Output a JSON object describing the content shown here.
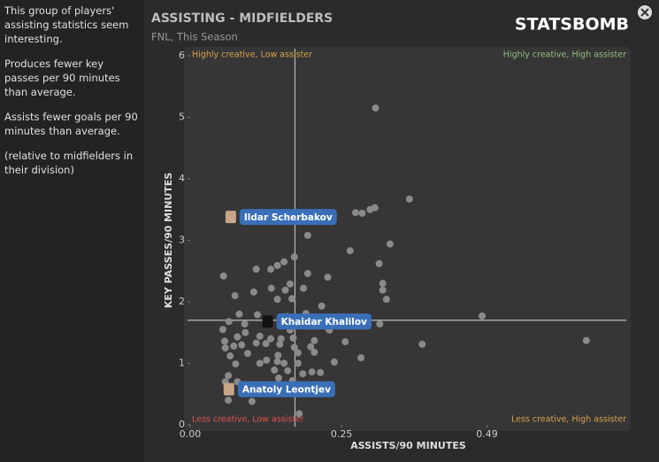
{
  "sidebar": {
    "paragraphs": [
      "This group of players' assisting statistics seem interesting.",
      "Produces fewer key passes per 90 minutes than average.",
      "Assists fewer goals per 90 minutes than average.",
      "(relative to midfielders in their division)"
    ]
  },
  "header": {
    "title": "ASSISTING - MIDFIELDERS",
    "subtitle": "FNL, This Season",
    "logo": "STATSBOMB"
  },
  "chart_data": {
    "type": "scatter",
    "x_label": "ASSISTS/90 MINUTES",
    "y_label": "KEY PASSES/90 MINUTES",
    "xlim": [
      0,
      0.72
    ],
    "ylim": [
      0,
      6
    ],
    "xticks": [
      {
        "value": 0,
        "label": "0.00"
      },
      0.25,
      0.49
    ],
    "yticks": [
      0,
      1,
      2,
      3,
      4,
      5,
      6
    ],
    "reference_lines": {
      "x": 0.173,
      "y": 1.7
    },
    "quadrant_labels": {
      "top_left": "Highly creative, Low assister",
      "top_right": "Highly creative, High assister",
      "bottom_left": "Less creative, Low assister",
      "bottom_right": "Less creative, High assister"
    },
    "series": [
      {
        "color": "#8a8a8a",
        "x": [
          0.306,
          0.362,
          0.273,
          0.284,
          0.297,
          0.305,
          0.194,
          0.33,
          0.264,
          0.155,
          0.144,
          0.133,
          0.109,
          0.172,
          0.312,
          0.055,
          0.194,
          0.227,
          0.318,
          0.318,
          0.324,
          0.105,
          0.074,
          0.165,
          0.157,
          0.187,
          0.168,
          0.144,
          0.134,
          0.217,
          0.191,
          0.081,
          0.111,
          0.16,
          0.171,
          0.216,
          0.064,
          0.09,
          0.313,
          0.482,
          0.654,
          0.383,
          0.256,
          0.227,
          0.23,
          0.165,
          0.15,
          0.17,
          0.054,
          0.057,
          0.078,
          0.091,
          0.115,
          0.109,
          0.125,
          0.133,
          0.072,
          0.085,
          0.058,
          0.148,
          0.205,
          0.205,
          0.178,
          0.145,
          0.126,
          0.144,
          0.155,
          0.178,
          0.172,
          0.199,
          0.238,
          0.282,
          0.095,
          0.066,
          0.115,
          0.075,
          0.139,
          0.161,
          0.186,
          0.201,
          0.215,
          0.146,
          0.169,
          0.101,
          0.063,
          0.058,
          0.078,
          0.087,
          0.115,
          0.15,
          0.175,
          0.218,
          0.188,
          0.18,
          0.063,
          0.102,
          0.18
        ],
        "values": [
          5.15,
          3.67,
          3.45,
          3.44,
          3.5,
          3.53,
          3.08,
          2.94,
          2.83,
          2.65,
          2.59,
          2.53,
          2.53,
          2.73,
          2.62,
          2.42,
          2.46,
          2.4,
          2.3,
          2.19,
          2.04,
          2.16,
          2.1,
          2.29,
          2.19,
          2.22,
          2.05,
          2.04,
          2.22,
          1.93,
          1.81,
          1.8,
          1.79,
          1.76,
          1.73,
          1.66,
          1.68,
          1.64,
          1.64,
          1.77,
          1.37,
          1.31,
          1.35,
          1.58,
          1.54,
          1.54,
          1.4,
          1.41,
          1.55,
          1.36,
          1.43,
          1.5,
          1.44,
          1.33,
          1.32,
          1.4,
          1.28,
          1.3,
          1.25,
          1.31,
          1.37,
          1.18,
          1.17,
          1.13,
          1.05,
          1.03,
          1.0,
          1.0,
          1.26,
          1.27,
          1.02,
          1.09,
          1.16,
          1.12,
          1.0,
          0.99,
          0.89,
          0.88,
          0.83,
          0.86,
          0.85,
          0.76,
          0.72,
          0.65,
          0.8,
          0.7,
          0.7,
          0.6,
          0.54,
          0.55,
          0.63,
          0.64,
          0.52,
          0.56,
          0.4,
          0.38,
          0.18
        ]
      }
    ],
    "labeled_points": [
      {
        "name": "Ildar Scherbakov",
        "x": 0.067,
        "y": 3.38,
        "color": "#8a8a8a"
      },
      {
        "name": "Khaidar Khalilov",
        "x": 0.128,
        "y": 1.68,
        "color": "#000000"
      },
      {
        "name": "Anatoly Leontjev",
        "x": 0.064,
        "y": 0.58,
        "color": "#8a8a8a"
      }
    ]
  }
}
